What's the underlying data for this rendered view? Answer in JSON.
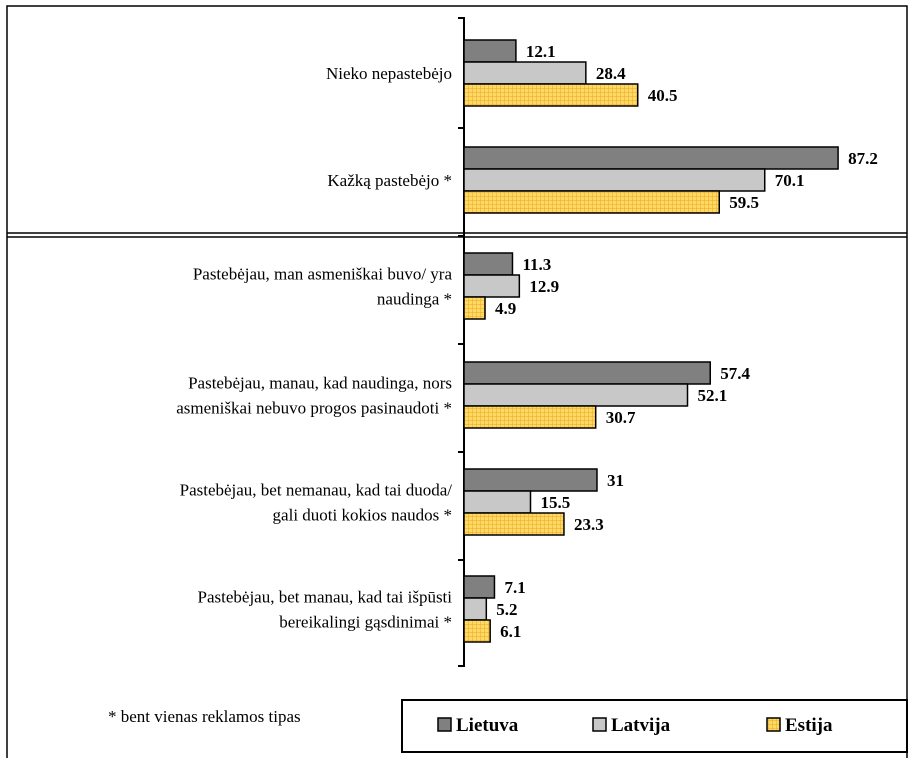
{
  "chart_data": {
    "type": "bar",
    "orientation": "horizontal",
    "categories": [
      "Nieko nepastebėjo",
      "Kažką pastebėjo *",
      "Pastebėjau, man asmeniškai buvo/ yra naudinga *",
      "Pastebėjau, manau, kad naudinga, nors asmeniškai nebuvo progos pasinaudoti *",
      "Pastebėjau, bet nemanau, kad tai duoda/ gali duoti kokios naudos *",
      "Pastebėjau, bet manau, kad tai išpūsti bereikalingi gąsdinimai *"
    ],
    "category_lines": [
      [
        "Nieko nepastebėjo"
      ],
      [
        "Kažką pastebėjo *"
      ],
      [
        "Pastebėjau, man asmeniškai buvo/ yra",
        "naudinga *"
      ],
      [
        "Pastebėjau, manau, kad naudinga, nors",
        "asmeniškai nebuvo progos pasinaudoti *"
      ],
      [
        "Pastebėjau, bet nemanau, kad tai duoda/",
        "gali duoti kokios naudos *"
      ],
      [
        "Pastebėjau, bet manau, kad tai išpūsti",
        "bereikalingi gąsdinimai *"
      ]
    ],
    "series": [
      {
        "name": "Lietuva",
        "values": [
          12.1,
          87.2,
          11.3,
          57.4,
          31,
          7.1
        ],
        "labels": [
          "12.1",
          "87.2",
          "11.3",
          "57.4",
          "31",
          "7.1"
        ],
        "color": "#808080",
        "pattern": "solid"
      },
      {
        "name": "Latvija",
        "values": [
          28.4,
          70.1,
          12.9,
          52.1,
          15.5,
          5.2
        ],
        "labels": [
          "28.4",
          "70.1",
          "12.9",
          "52.1",
          "15.5",
          "5.2"
        ],
        "color": "#c8c8c8",
        "pattern": "solid"
      },
      {
        "name": "Estija",
        "values": [
          40.5,
          59.5,
          4.9,
          30.7,
          23.3,
          6.1
        ],
        "labels": [
          "40.5",
          "59.5",
          "4.9",
          "30.7",
          "23.3",
          "6.1"
        ],
        "color": "#ffd966",
        "pattern": "grid"
      }
    ],
    "xlim": [
      0,
      100
    ],
    "grid": false,
    "legend_position": "bottom-right",
    "separator_after_category": 1
  },
  "footnote": "* bent vienas reklamos tipas",
  "colors": {
    "lietuva": "#808080",
    "latvija": "#c8c8c8",
    "estija_fill": "#ffd966",
    "estija_grid": "#e8a820",
    "border": "#000000"
  }
}
